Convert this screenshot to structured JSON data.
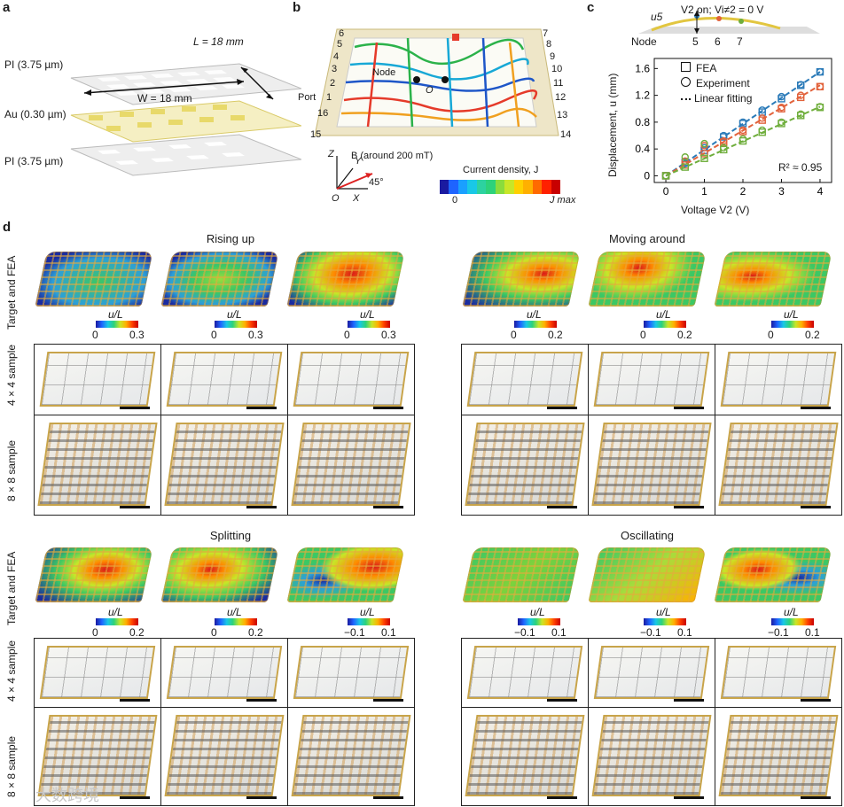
{
  "panels": {
    "a": "a",
    "b": "b",
    "c": "c",
    "d": "d"
  },
  "a": {
    "layer_top": "PI (3.75 µm)",
    "layer_mid": "Au (0.30 µm)",
    "layer_bot": "PI (3.75 µm)",
    "L_label": "L = 18 mm",
    "W_label": "W = 18 mm"
  },
  "b": {
    "ports_left": [
      "6",
      "5",
      "4",
      "3",
      "2",
      "1",
      "16",
      "15"
    ],
    "ports_right": [
      "7",
      "8",
      "9",
      "10",
      "11",
      "12",
      "13",
      "14"
    ],
    "port_label": "Port",
    "node_label": "Node",
    "origin_label": "O",
    "field_label": "B (around 200 mT)",
    "axis_z": "Z",
    "axis_y": "Y",
    "axis_x": "X",
    "axis_o": "O",
    "angle": "45°",
    "current_title": "Current density, J",
    "cb_min": "0",
    "cb_max": "J max"
  },
  "c": {
    "header": "V2 on; Vi≠2 = 0 V",
    "u5": "u5",
    "node_title": "Node",
    "nodes": [
      "5",
      "6",
      "7"
    ],
    "legend": [
      "FEA",
      "Experiment",
      "Linear fitting"
    ],
    "r2": "R² ≈ 0.95"
  },
  "chart_data": {
    "type": "scatter",
    "title": "",
    "xlabel": "Voltage V2 (V)",
    "ylabel": "Displacement, u (mm)",
    "xlim": [
      -0.3,
      4.3
    ],
    "ylim": [
      -0.1,
      1.75
    ],
    "xticks": [
      0,
      1,
      2,
      3,
      4
    ],
    "yticks": [
      0,
      0.4,
      0.8,
      1.2,
      1.6
    ],
    "series": [
      {
        "name": "Node 5",
        "color": "#2a7ab8",
        "fea_x": [
          0,
          0.5,
          1,
          1.5,
          2,
          2.5,
          3,
          3.5,
          4
        ],
        "fea_y": [
          0,
          0.2,
          0.38,
          0.58,
          0.78,
          0.95,
          1.15,
          1.35,
          1.55
        ],
        "exp_x": [
          0,
          0.5,
          1,
          1.5,
          2,
          2.5,
          3,
          3.5,
          4
        ],
        "exp_y": [
          0,
          0.18,
          0.42,
          0.6,
          0.8,
          0.98,
          1.18,
          1.36,
          1.55
        ],
        "fit": [
          0,
          1.55
        ]
      },
      {
        "name": "Node 6",
        "color": "#e2623b",
        "fea_x": [
          0,
          0.5,
          1,
          1.5,
          2,
          2.5,
          3,
          3.5,
          4
        ],
        "fea_y": [
          0,
          0.16,
          0.33,
          0.5,
          0.66,
          0.83,
          1.0,
          1.17,
          1.33
        ],
        "exp_x": [
          0,
          0.5,
          1,
          1.5,
          2,
          2.5,
          3,
          3.5,
          4
        ],
        "exp_y": [
          0,
          0.22,
          0.45,
          0.52,
          0.68,
          0.86,
          1.02,
          1.2,
          1.33
        ],
        "fit": [
          0,
          1.35
        ]
      },
      {
        "name": "Node 7",
        "color": "#6fae3c",
        "fea_x": [
          0,
          0.5,
          1,
          1.5,
          2,
          2.5,
          3,
          3.5,
          4
        ],
        "fea_y": [
          0,
          0.13,
          0.26,
          0.39,
          0.52,
          0.65,
          0.78,
          0.9,
          1.02
        ],
        "exp_x": [
          0,
          0.5,
          1,
          1.5,
          2,
          2.5,
          3,
          3.5,
          4
        ],
        "exp_y": [
          0,
          0.28,
          0.48,
          0.42,
          0.55,
          0.68,
          0.8,
          0.92,
          1.03
        ],
        "fit": [
          0,
          1.03
        ]
      }
    ]
  },
  "d": {
    "titles": [
      "Rising up",
      "Moving around",
      "Splitting",
      "Oscillating"
    ],
    "row_target": "Target and FEA",
    "row_4x4": "4 × 4 sample",
    "row_8x8": "8 × 8 sample",
    "cb_title": "u/L",
    "cb_sets": {
      "rising": [
        [
          "0",
          "0.3"
        ],
        [
          "0",
          "0.3"
        ],
        [
          "0",
          "0.3"
        ]
      ],
      "moving": [
        [
          "0",
          "0.2"
        ],
        [
          "0",
          "0.2"
        ],
        [
          "0",
          "0.2"
        ]
      ],
      "splitting": [
        [
          "0",
          "0.2"
        ],
        [
          "0",
          "0.2"
        ],
        [
          "−0.1",
          "0.1"
        ]
      ],
      "oscillating": [
        [
          "−0.1",
          "0.1"
        ],
        [
          "−0.1",
          "0.1"
        ],
        [
          "−0.1",
          "0.1"
        ]
      ]
    }
  },
  "watermark": "大数跨境"
}
